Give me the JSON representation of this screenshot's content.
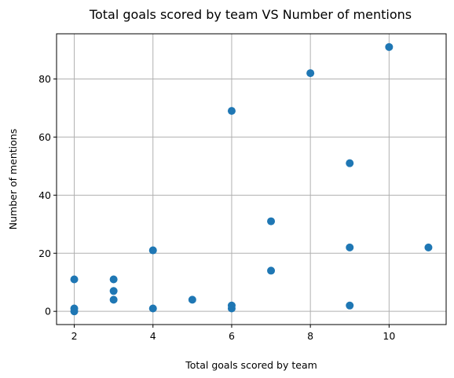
{
  "chart_data": {
    "type": "scatter",
    "title": "Total goals scored by team VS Number of mentions",
    "xlabel": "Total goals scored by team",
    "ylabel": "Number of mentions",
    "xlim": [
      1.55,
      11.45
    ],
    "ylim": [
      -4.55,
      95.55
    ],
    "xticks": [
      2,
      4,
      6,
      8,
      10
    ],
    "yticks": [
      0,
      20,
      40,
      60,
      80
    ],
    "grid": true,
    "marker_color": "#1f77b4",
    "points": [
      {
        "x": 2,
        "y": 0
      },
      {
        "x": 2,
        "y": 1
      },
      {
        "x": 2,
        "y": 11
      },
      {
        "x": 3,
        "y": 4
      },
      {
        "x": 3,
        "y": 7
      },
      {
        "x": 3,
        "y": 11
      },
      {
        "x": 4,
        "y": 1
      },
      {
        "x": 4,
        "y": 21
      },
      {
        "x": 5,
        "y": 4
      },
      {
        "x": 6,
        "y": 1
      },
      {
        "x": 6,
        "y": 2
      },
      {
        "x": 6,
        "y": 69
      },
      {
        "x": 7,
        "y": 14
      },
      {
        "x": 7,
        "y": 31
      },
      {
        "x": 8,
        "y": 82
      },
      {
        "x": 9,
        "y": 2
      },
      {
        "x": 9,
        "y": 22
      },
      {
        "x": 9,
        "y": 51
      },
      {
        "x": 10,
        "y": 91
      },
      {
        "x": 11,
        "y": 22
      }
    ]
  }
}
